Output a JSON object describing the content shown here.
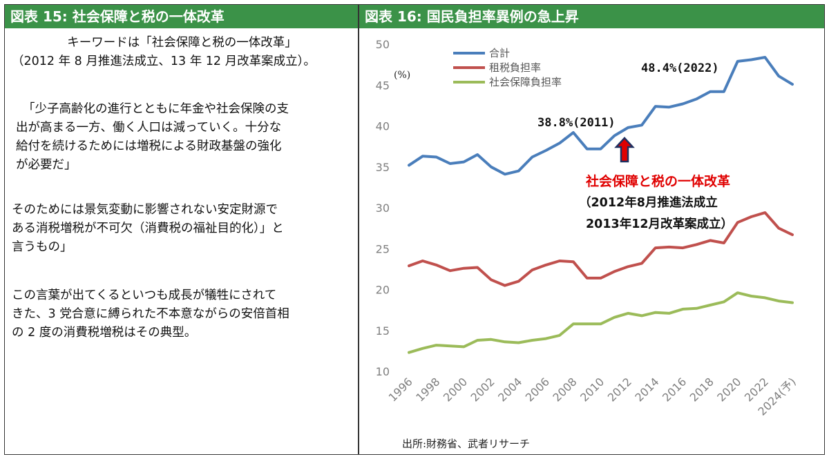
{
  "left_panel": {
    "title": "図表 15: 社会保障と税の一体改革",
    "lines": [
      "キーワードは「社会保障と税の一体改革」",
      "（2012 年 8 月推進法成立、13 年 12 月改革案成立）。",
      "「少子高齢化の進行とともに年金や社会保険の支",
      "出が高まる一方、働く人口は減っていく。十分な",
      "給付を続けるためには増税による財政基盤の強化",
      "が必要だ」",
      "そのためには景気変動に影響されない安定財源で",
      "ある消税増税が不可欠（消費税の福祉目的化）」と",
      "言うもの」",
      "この言葉が出てくるといつも成長が犠牲にされて",
      "きた、3 党合意に縛られた不本意ながらの安倍首相",
      "の 2 度の消費税増税はその典型。"
    ]
  },
  "right_panel": {
    "title": "図表 16: 国民負担率異例の急上昇",
    "unit_label": "(%)",
    "source": "出所:財務省、武者リサーチ",
    "annotations": {
      "peak_2022": "48.4%(2022)",
      "value_2011": "38.8%(2011)",
      "reform_title": "社会保障と税の一体改革",
      "reform_line1": "（2012年8月推進法成立",
      "reform_line2": "2013年12月改革案成立）"
    }
  },
  "chart_data": {
    "type": "line",
    "x": [
      "1996",
      "1997",
      "1998",
      "1999",
      "2000",
      "2001",
      "2002",
      "2003",
      "2004",
      "2005",
      "2006",
      "2007",
      "2008",
      "2009",
      "2010",
      "2011",
      "2012",
      "2013",
      "2014",
      "2015",
      "2016",
      "2017",
      "2018",
      "2019",
      "2020",
      "2021",
      "2022",
      "2023",
      "2024(予)"
    ],
    "x_tick_labels": [
      "1996",
      "1998",
      "2000",
      "2002",
      "2004",
      "2006",
      "2008",
      "2010",
      "2012",
      "2014",
      "2016",
      "2018",
      "2020",
      "2022",
      "2024(予)"
    ],
    "ylim": [
      10,
      50
    ],
    "y_ticks": [
      10,
      15,
      20,
      25,
      30,
      35,
      40,
      45,
      50
    ],
    "grid": false,
    "legend_position": "top-left",
    "series": [
      {
        "name": "合計",
        "color": "#4a7ebb",
        "values": [
          35.2,
          36.3,
          36.2,
          35.4,
          35.6,
          36.5,
          35.0,
          34.1,
          34.5,
          36.2,
          37.0,
          37.9,
          39.2,
          37.2,
          37.2,
          38.8,
          39.8,
          40.1,
          42.4,
          42.3,
          42.7,
          43.3,
          44.2,
          44.2,
          47.9,
          48.1,
          48.4,
          46.1,
          45.1
        ]
      },
      {
        "name": "租税負担率",
        "color": "#c0504d",
        "values": [
          22.9,
          23.5,
          23.0,
          22.3,
          22.6,
          22.7,
          21.2,
          20.5,
          21.0,
          22.4,
          23.0,
          23.5,
          23.4,
          21.4,
          21.4,
          22.2,
          22.8,
          23.2,
          25.1,
          25.2,
          25.1,
          25.5,
          26.0,
          25.7,
          28.2,
          28.9,
          29.4,
          27.5,
          26.7
        ]
      },
      {
        "name": "社会保障負担率",
        "color": "#9bbb59",
        "values": [
          12.3,
          12.8,
          13.2,
          13.1,
          13.0,
          13.8,
          13.9,
          13.6,
          13.5,
          13.8,
          14.0,
          14.4,
          15.8,
          15.8,
          15.8,
          16.6,
          17.1,
          16.8,
          17.2,
          17.1,
          17.6,
          17.7,
          18.1,
          18.5,
          19.6,
          19.2,
          19.0,
          18.6,
          18.4
        ]
      }
    ]
  }
}
